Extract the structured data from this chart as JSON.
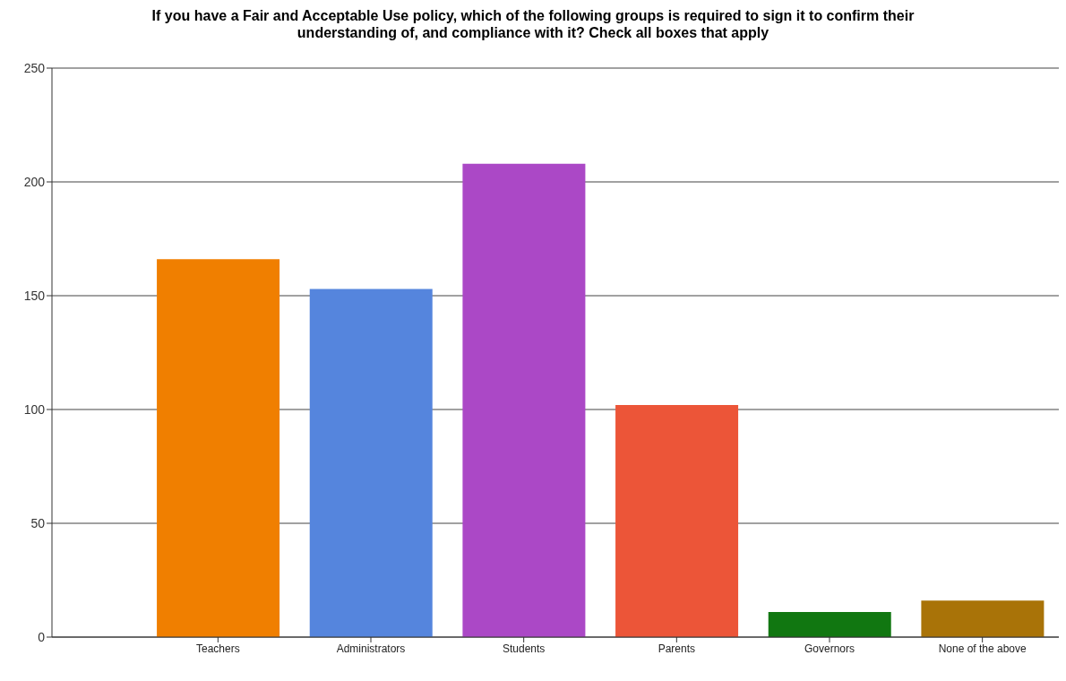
{
  "chart_data": {
    "type": "bar",
    "title": "If you have a Fair and Acceptable Use policy, which of the following groups is required to sign it to confirm their understanding of, and compliance with it? Check all boxes that apply",
    "categories": [
      "Teachers",
      "Administrators",
      "Students",
      "Parents",
      "Governors",
      "None of the above"
    ],
    "values": [
      166,
      153,
      208,
      102,
      11,
      16
    ],
    "colors": [
      "#f07f00",
      "#5585dd",
      "#ab48c6",
      "#ec5538",
      "#117711",
      "#a97308"
    ],
    "ylim": [
      0,
      250
    ],
    "yticks": [
      0,
      50,
      100,
      150,
      200,
      250
    ],
    "grid": "y"
  }
}
